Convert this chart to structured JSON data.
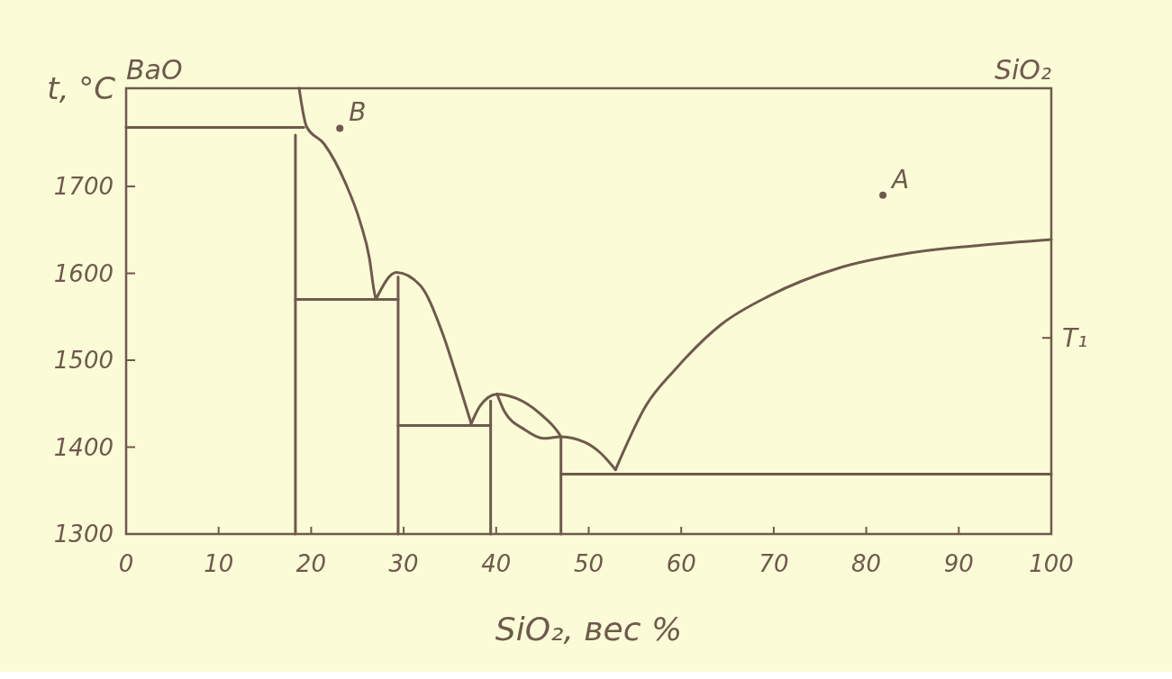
{
  "chart_data": {
    "type": "line",
    "xlabel": "SiO₂, вес %",
    "ylabel": "t, °C",
    "xlim": [
      0,
      100
    ],
    "xticks": [
      0,
      10,
      20,
      30,
      40,
      50,
      60,
      70,
      80,
      90,
      100
    ],
    "ylim": [
      1300,
      1813
    ],
    "yticks": [
      1300,
      1400,
      1500,
      1600,
      1700
    ],
    "grid": false,
    "marker": "none",
    "line_style": "solid",
    "series": [
      {
        "color": "#6e5a4c",
        "x": [
          18.7,
          19.5,
          21.4,
          23.7,
          25.3,
          26.3,
          26.8,
          27.0
        ],
        "values": [
          1813,
          1769,
          1749,
          1704,
          1659,
          1617,
          1580,
          1570
        ]
      },
      {
        "color": "#6e5a4c",
        "x": [
          27.0,
          29.2,
          31.8,
          34.1,
          36.0,
          37.3
        ],
        "values": [
          1570,
          1601,
          1586,
          1534,
          1472,
          1427
        ]
      },
      {
        "color": "#6e5a4c",
        "x": [
          37.3,
          38.3,
          40.1,
          42.2,
          44.8,
          46.7,
          47.0
        ],
        "values": [
          1427,
          1448,
          1461,
          1456,
          1438,
          1417,
          1412
        ]
      },
      {
        "color": "#6e5a4c",
        "x": [
          40.1,
          40.9,
          43.1,
          45.1,
          47.0,
          49.7,
          51.3,
          52.9
        ],
        "values": [
          1461,
          1441,
          1420,
          1410,
          1412,
          1405,
          1393,
          1374
        ]
      },
      {
        "color": "#6e5a4c",
        "x": [
          52.9,
          56.2,
          59.4,
          64.3,
          69.5,
          77.0,
          84.5,
          92.0,
          100
        ],
        "values": [
          1374,
          1448,
          1490,
          1541,
          1574,
          1606,
          1623,
          1632,
          1639
        ]
      },
      {
        "color": "#6e5a4c",
        "x": [
          0,
          19.2
        ],
        "values": [
          1768,
          1768
        ]
      },
      {
        "color": "#6e5a4c",
        "x": [
          18.3,
          18.3
        ],
        "values": [
          1300,
          1759
        ]
      },
      {
        "color": "#6e5a4c",
        "x": [
          18.3,
          29.4
        ],
        "values": [
          1570,
          1570
        ]
      },
      {
        "color": "#6e5a4c",
        "x": [
          29.4,
          29.4
        ],
        "values": [
          1300,
          1596
        ]
      },
      {
        "color": "#6e5a4c",
        "x": [
          29.4,
          39.4
        ],
        "values": [
          1425,
          1425
        ]
      },
      {
        "color": "#6e5a4c",
        "x": [
          39.4,
          39.4
        ],
        "values": [
          1300,
          1453
        ]
      },
      {
        "color": "#6e5a4c",
        "x": [
          47.0,
          47.0
        ],
        "values": [
          1300,
          1412
        ]
      },
      {
        "color": "#6e5a4c",
        "x": [
          47.0,
          100
        ],
        "values": [
          1369,
          1369
        ]
      },
      {
        "type": "scatter",
        "marker": "circle",
        "color": "#6e5a4c",
        "x": [
          23.1,
          81.8
        ],
        "values": [
          1767,
          1690
        ]
      }
    ],
    "annotations": [
      {
        "text": "B",
        "x": 23.1,
        "y": 1767
      },
      {
        "text": "A",
        "x": 81.8,
        "y": 1690
      },
      "BaO",
      "SiO₂",
      "T₁"
    ]
  }
}
